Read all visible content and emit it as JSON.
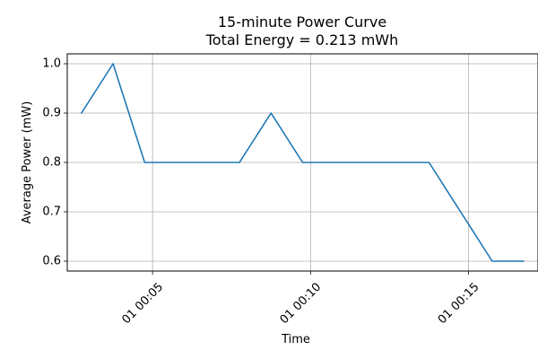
{
  "chart_data": {
    "type": "line",
    "title": "15-minute Power Curve",
    "subtitle": "Total Energy = 0.213 mWh",
    "xlabel": "Time",
    "ylabel": "Average Power (mW)",
    "x_unit": "minutes",
    "xlim": [
      2.3,
      17.2
    ],
    "ylim": [
      0.58,
      1.02
    ],
    "x_ticks": [
      {
        "value": 5,
        "label": "01 00:05"
      },
      {
        "value": 10,
        "label": "01 00:10"
      },
      {
        "value": 15,
        "label": "01 00:15"
      }
    ],
    "y_ticks": [
      {
        "value": 0.6,
        "label": "0.6"
      },
      {
        "value": 0.7,
        "label": "0.7"
      },
      {
        "value": 0.8,
        "label": "0.8"
      },
      {
        "value": 0.9,
        "label": "0.9"
      },
      {
        "value": 1.0,
        "label": "1.0"
      }
    ],
    "grid": true,
    "series": [
      {
        "color": "#1f77b4",
        "points": [
          {
            "x": 2.75,
            "y": 0.9
          },
          {
            "x": 3.75,
            "y": 1.0
          },
          {
            "x": 4.75,
            "y": 0.8
          },
          {
            "x": 5.75,
            "y": 0.8
          },
          {
            "x": 6.75,
            "y": 0.8
          },
          {
            "x": 7.75,
            "y": 0.8
          },
          {
            "x": 8.75,
            "y": 0.9
          },
          {
            "x": 9.75,
            "y": 0.8
          },
          {
            "x": 10.75,
            "y": 0.8
          },
          {
            "x": 11.75,
            "y": 0.8
          },
          {
            "x": 12.75,
            "y": 0.8
          },
          {
            "x": 13.75,
            "y": 0.8
          },
          {
            "x": 14.75,
            "y": 0.7
          },
          {
            "x": 15.75,
            "y": 0.6
          },
          {
            "x": 16.75,
            "y": 0.6
          }
        ]
      }
    ]
  }
}
